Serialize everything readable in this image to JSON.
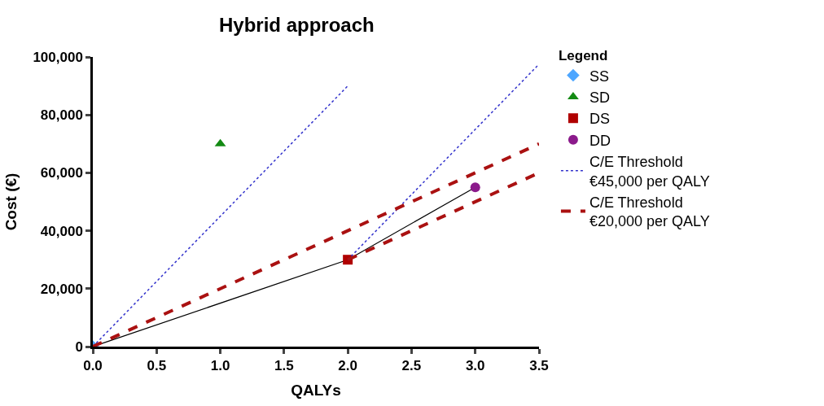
{
  "chart_data": {
    "type": "scatter",
    "title": "Hybrid approach",
    "xlabel": "QALYs",
    "ylabel": "Cost (€)",
    "legend_title": "Legend",
    "legend": "right",
    "grid": false,
    "xlim": [
      0,
      3.5
    ],
    "xticks": [
      {
        "value": 0,
        "label": "0.0"
      },
      {
        "value": 0.5,
        "label": "0.5"
      },
      {
        "value": 1,
        "label": "1.0"
      },
      {
        "value": 1.5,
        "label": "1.5"
      },
      {
        "value": 2,
        "label": "2.0"
      },
      {
        "value": 2.5,
        "label": "2.5"
      },
      {
        "value": 3,
        "label": "3.0"
      },
      {
        "value": 3.5,
        "label": "3.5"
      }
    ],
    "ylim": [
      0,
      100000
    ],
    "yticks": [
      0,
      {
        "value": 20000,
        "label": "20,000"
      },
      {
        "value": 40000,
        "label": "40,000"
      },
      {
        "value": 60000,
        "label": "60,000"
      },
      {
        "value": 80000,
        "label": "80,000"
      },
      {
        "value": 100000,
        "label": "100,000"
      }
    ],
    "series": [
      {
        "type": "line",
        "color": "#000000",
        "x": [
          0,
          2,
          3
        ],
        "values": [
          0,
          30000,
          55000
        ],
        "marker": "none",
        "line_style": "solid"
      },
      {
        "name": "SS",
        "color": "#4da6ff",
        "x": [
          0
        ],
        "values": [
          0
        ],
        "marker": "diamond"
      },
      {
        "name": "SD",
        "color": "#138a13",
        "x": [
          1
        ],
        "values": [
          70000
        ],
        "marker": "triangle"
      },
      {
        "name": "DS",
        "color": "#b00000",
        "x": [
          2
        ],
        "values": [
          30000
        ],
        "marker": "square"
      },
      {
        "name": "DD",
        "color": "#8b1a8b",
        "x": [
          3
        ],
        "values": [
          55000
        ],
        "marker": "circle"
      },
      {
        "name": "C/E Threshold\n€45,000 per QALY",
        "type": "line",
        "color": "#3333cc",
        "x": [
          0,
          2
        ],
        "values": [
          0,
          90000
        ],
        "marker": "none",
        "line_style": "dotted"
      },
      {
        "type": "line",
        "color": "#3333cc",
        "x": [
          2,
          3.5
        ],
        "values": [
          30000,
          97500
        ],
        "marker": "none",
        "line_style": "dotted"
      },
      {
        "name": "C/E Threshold\n€20,000 per QALY",
        "type": "line",
        "color": "#aa1111",
        "x": [
          0,
          3.5
        ],
        "values": [
          0,
          70000
        ],
        "marker": "none",
        "line_style": "dashed"
      },
      {
        "type": "line",
        "color": "#aa1111",
        "x": [
          2,
          3.5
        ],
        "values": [
          30000,
          60000
        ],
        "marker": "none",
        "line_style": "dashed"
      }
    ]
  }
}
